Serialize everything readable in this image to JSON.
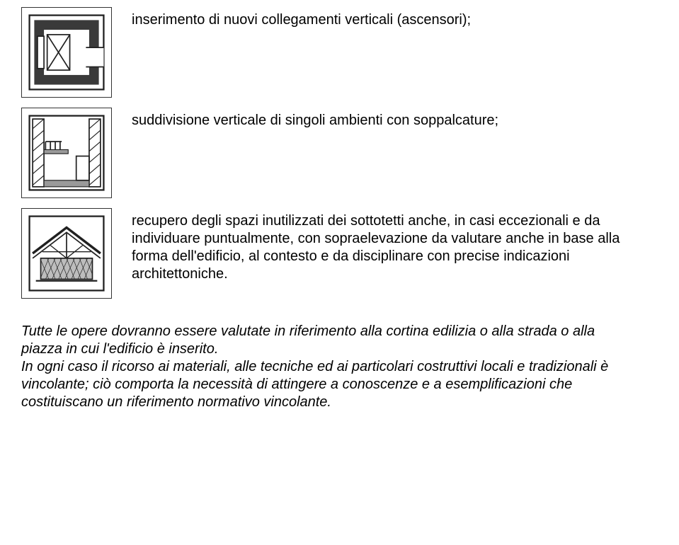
{
  "rows": [
    {
      "text": "inserimento di nuovi collegamenti verticali (ascensori);"
    },
    {
      "text": "suddivisione verticale di singoli ambienti con soppalcature;"
    },
    {
      "text": "recupero degli spazi inutilizzati dei sottotetti anche, in casi eccezionali e da individuare puntualmente, con sopraelevazione da valutare anche in base alla forma dell'edificio, al contesto e da disciplinare con precise indicazioni architettoniche."
    }
  ],
  "paragraph": "Tutte le opere dovranno essere valutate in riferimento alla cortina edilizia o alla strada o alla piazza in cui l'edificio è inserito.\nIn ogni caso il ricorso ai materiali, alle tecniche ed ai particolari costruttivi locali e tradizionali è vincolante; ciò comporta la necessità di attingere a conoscenze e a esemplificazioni che costituiscano un riferimento normativo vincolante.",
  "diagram_stroke": "#202020",
  "hatch_fill": "#9a9a9a"
}
